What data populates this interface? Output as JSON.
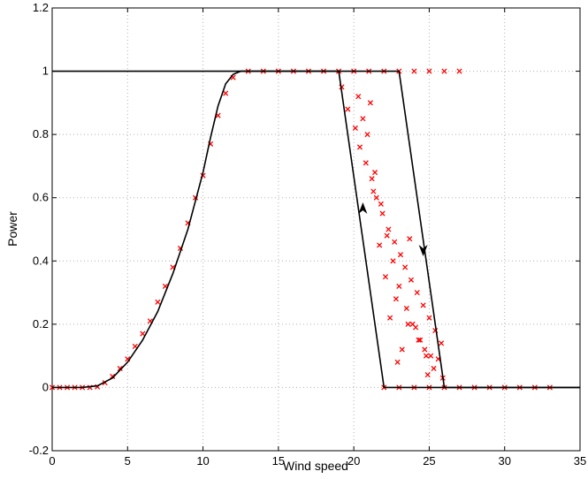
{
  "chart_data": {
    "type": "scatter",
    "title": "",
    "xlabel": "Wind speed",
    "ylabel": "Power",
    "xlim": [
      0,
      35
    ],
    "ylim": [
      -0.2,
      1.2
    ],
    "x_ticks": [
      "0",
      "5",
      "10",
      "15",
      "20",
      "25",
      "30",
      "35"
    ],
    "y_ticks": [
      "-0.2",
      "0",
      "0.2",
      "0.4",
      "0.6",
      "0.8",
      "1",
      "1.2"
    ],
    "grid": true,
    "legend": "none",
    "series": [
      {
        "kind": "curve",
        "color": "#000000",
        "x": [
          0,
          2,
          3,
          4,
          5,
          6,
          7,
          8,
          9,
          10,
          10.5,
          11,
          11.5,
          12,
          12.5,
          13,
          23,
          26,
          35
        ],
        "y": [
          0,
          0,
          0.005,
          0.03,
          0.08,
          0.15,
          0.24,
          0.36,
          0.5,
          0.68,
          0.79,
          0.89,
          0.96,
          0.99,
          1,
          1,
          1,
          0,
          0
        ]
      },
      {
        "kind": "curve",
        "color": "#000000",
        "x": [
          0,
          19,
          22,
          35
        ],
        "y": [
          1,
          1,
          0,
          0
        ]
      },
      {
        "kind": "scatter",
        "marker": "x",
        "color": "#ff0000",
        "x": [
          0,
          0.5,
          1,
          1.5,
          2,
          2.5,
          3,
          3.5,
          4,
          4.5,
          5,
          5.5,
          6,
          6.5,
          7,
          7.5,
          8,
          8.5,
          9,
          9.5,
          10,
          10.5,
          11,
          11.5,
          12,
          13,
          14,
          15,
          16,
          17,
          18,
          19,
          20,
          21,
          22,
          23,
          24,
          25,
          26,
          27,
          19.2,
          19.6,
          20.1,
          20.4,
          20.8,
          21.2,
          21.5,
          21.9,
          22.3,
          22.7,
          23.1,
          23.4,
          23.8,
          24.2,
          24.6,
          25,
          25.4,
          25.8,
          20.3,
          20.9,
          21.4,
          21.8,
          22.2,
          22.6,
          23,
          23.5,
          23.9,
          24.4,
          24.8,
          25.3,
          21.1,
          21.7,
          22.4,
          23.2,
          23.7,
          24.1,
          24.9,
          25.6,
          20.6,
          21.3,
          22.8,
          23.6,
          24.3,
          25.1,
          25.9,
          22.1,
          22.9,
          24.7,
          22,
          23,
          24,
          25,
          26,
          27,
          28,
          29,
          30,
          31,
          32,
          33
        ],
        "y": [
          0,
          0,
          0,
          0,
          0,
          0,
          0.002,
          0.015,
          0.035,
          0.06,
          0.09,
          0.13,
          0.17,
          0.21,
          0.27,
          0.32,
          0.38,
          0.44,
          0.52,
          0.6,
          0.67,
          0.77,
          0.86,
          0.93,
          0.98,
          1,
          1,
          1,
          1,
          1,
          1,
          1,
          1,
          1,
          1,
          1,
          1,
          1,
          1,
          1,
          0.95,
          0.88,
          0.82,
          0.76,
          0.71,
          0.66,
          0.6,
          0.55,
          0.5,
          0.46,
          0.42,
          0.38,
          0.34,
          0.3,
          0.26,
          0.22,
          0.18,
          0.14,
          0.92,
          0.8,
          0.68,
          0.58,
          0.48,
          0.4,
          0.32,
          0.25,
          0.2,
          0.15,
          0.1,
          0.06,
          0.9,
          0.45,
          0.22,
          0.12,
          0.47,
          0.19,
          0.04,
          0.09,
          0.85,
          0.62,
          0.28,
          0.2,
          0.15,
          0.1,
          0.03,
          0.35,
          0.08,
          0.12,
          0,
          0,
          0,
          0,
          0,
          0,
          0,
          0,
          0,
          0,
          0,
          0
        ]
      }
    ],
    "annotations": [
      {
        "kind": "arrow",
        "direction": "up",
        "x": 20.6,
        "y": 0.56
      },
      {
        "kind": "arrow",
        "direction": "down",
        "x": 24.6,
        "y": 0.44
      }
    ]
  }
}
